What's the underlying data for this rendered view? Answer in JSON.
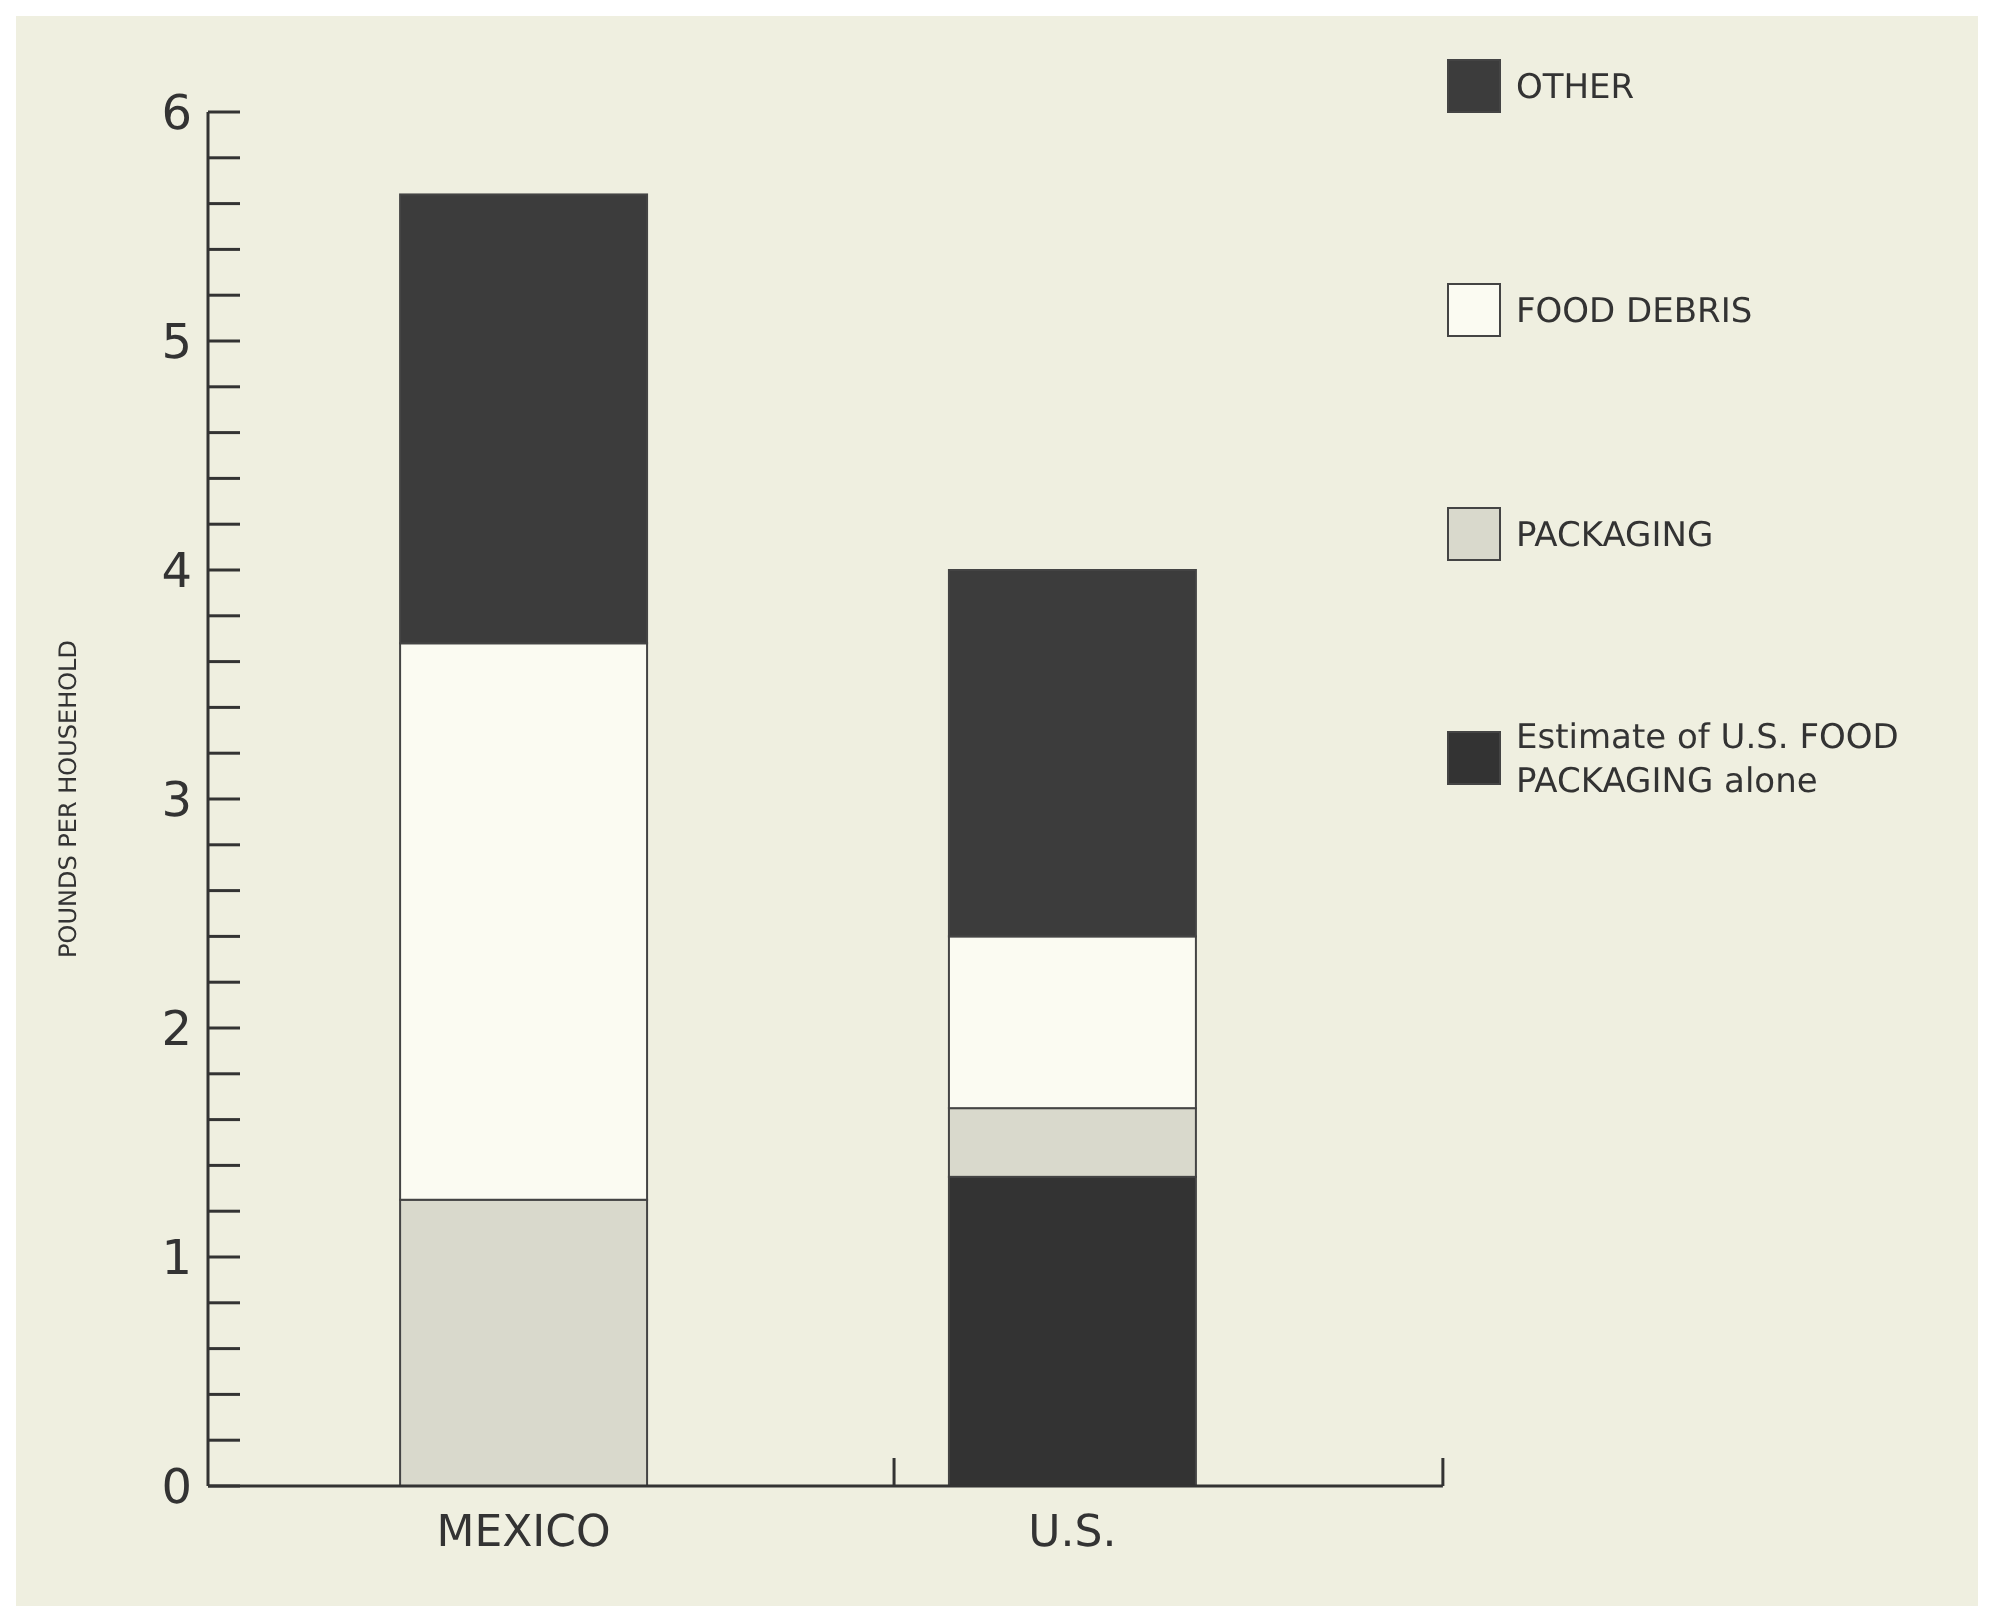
{
  "chart_data": {
    "type": "bar",
    "stacked": true,
    "ylabel": "POUNDS PER HOUSEHOLD",
    "categories": [
      "MEXICO",
      "U.S."
    ],
    "series": [
      {
        "name": "Estimate of U.S. FOOD PACKAGING alone",
        "color": "#333333",
        "values": [
          null,
          1.35
        ]
      },
      {
        "name": "PACKAGING",
        "color": "#d9d9cc",
        "values": [
          1.25,
          0.3
        ]
      },
      {
        "name": "FOOD DEBRIS",
        "color": "#fbfbf2",
        "values": [
          2.43,
          0.75
        ]
      },
      {
        "name": "OTHER",
        "color": "#3c3c3c",
        "values": [
          1.96,
          1.6
        ]
      }
    ],
    "ylim": [
      0,
      6
    ],
    "yticks": [
      0,
      {
        "value": 0.2,
        "label": null
      },
      {
        "value": 0.4,
        "label": null
      },
      {
        "value": 0.6,
        "label": null
      },
      {
        "value": 0.8,
        "label": null
      },
      1,
      {
        "value": 1.2,
        "label": null
      },
      {
        "value": 1.4,
        "label": null
      },
      {
        "value": 1.6,
        "label": null
      },
      {
        "value": 1.8,
        "label": null
      },
      2,
      {
        "value": 2.2,
        "label": null
      },
      {
        "value": 2.4,
        "label": null
      },
      {
        "value": 2.6,
        "label": null
      },
      {
        "value": 2.8,
        "label": null
      },
      3,
      {
        "value": 3.2,
        "label": null
      },
      {
        "value": 3.4,
        "label": null
      },
      {
        "value": 3.6,
        "label": null
      },
      {
        "value": 3.8,
        "label": null
      },
      4,
      {
        "value": 4.2,
        "label": null
      },
      {
        "value": 4.4,
        "label": null
      },
      {
        "value": 4.6,
        "label": null
      },
      {
        "value": 4.8,
        "label": null
      },
      5,
      {
        "value": 5.2,
        "label": null
      },
      {
        "value": 5.4,
        "label": null
      },
      {
        "value": 5.6,
        "label": null
      },
      {
        "value": 5.8,
        "label": null
      },
      6
    ],
    "legend": "top right",
    "grid": false
  }
}
